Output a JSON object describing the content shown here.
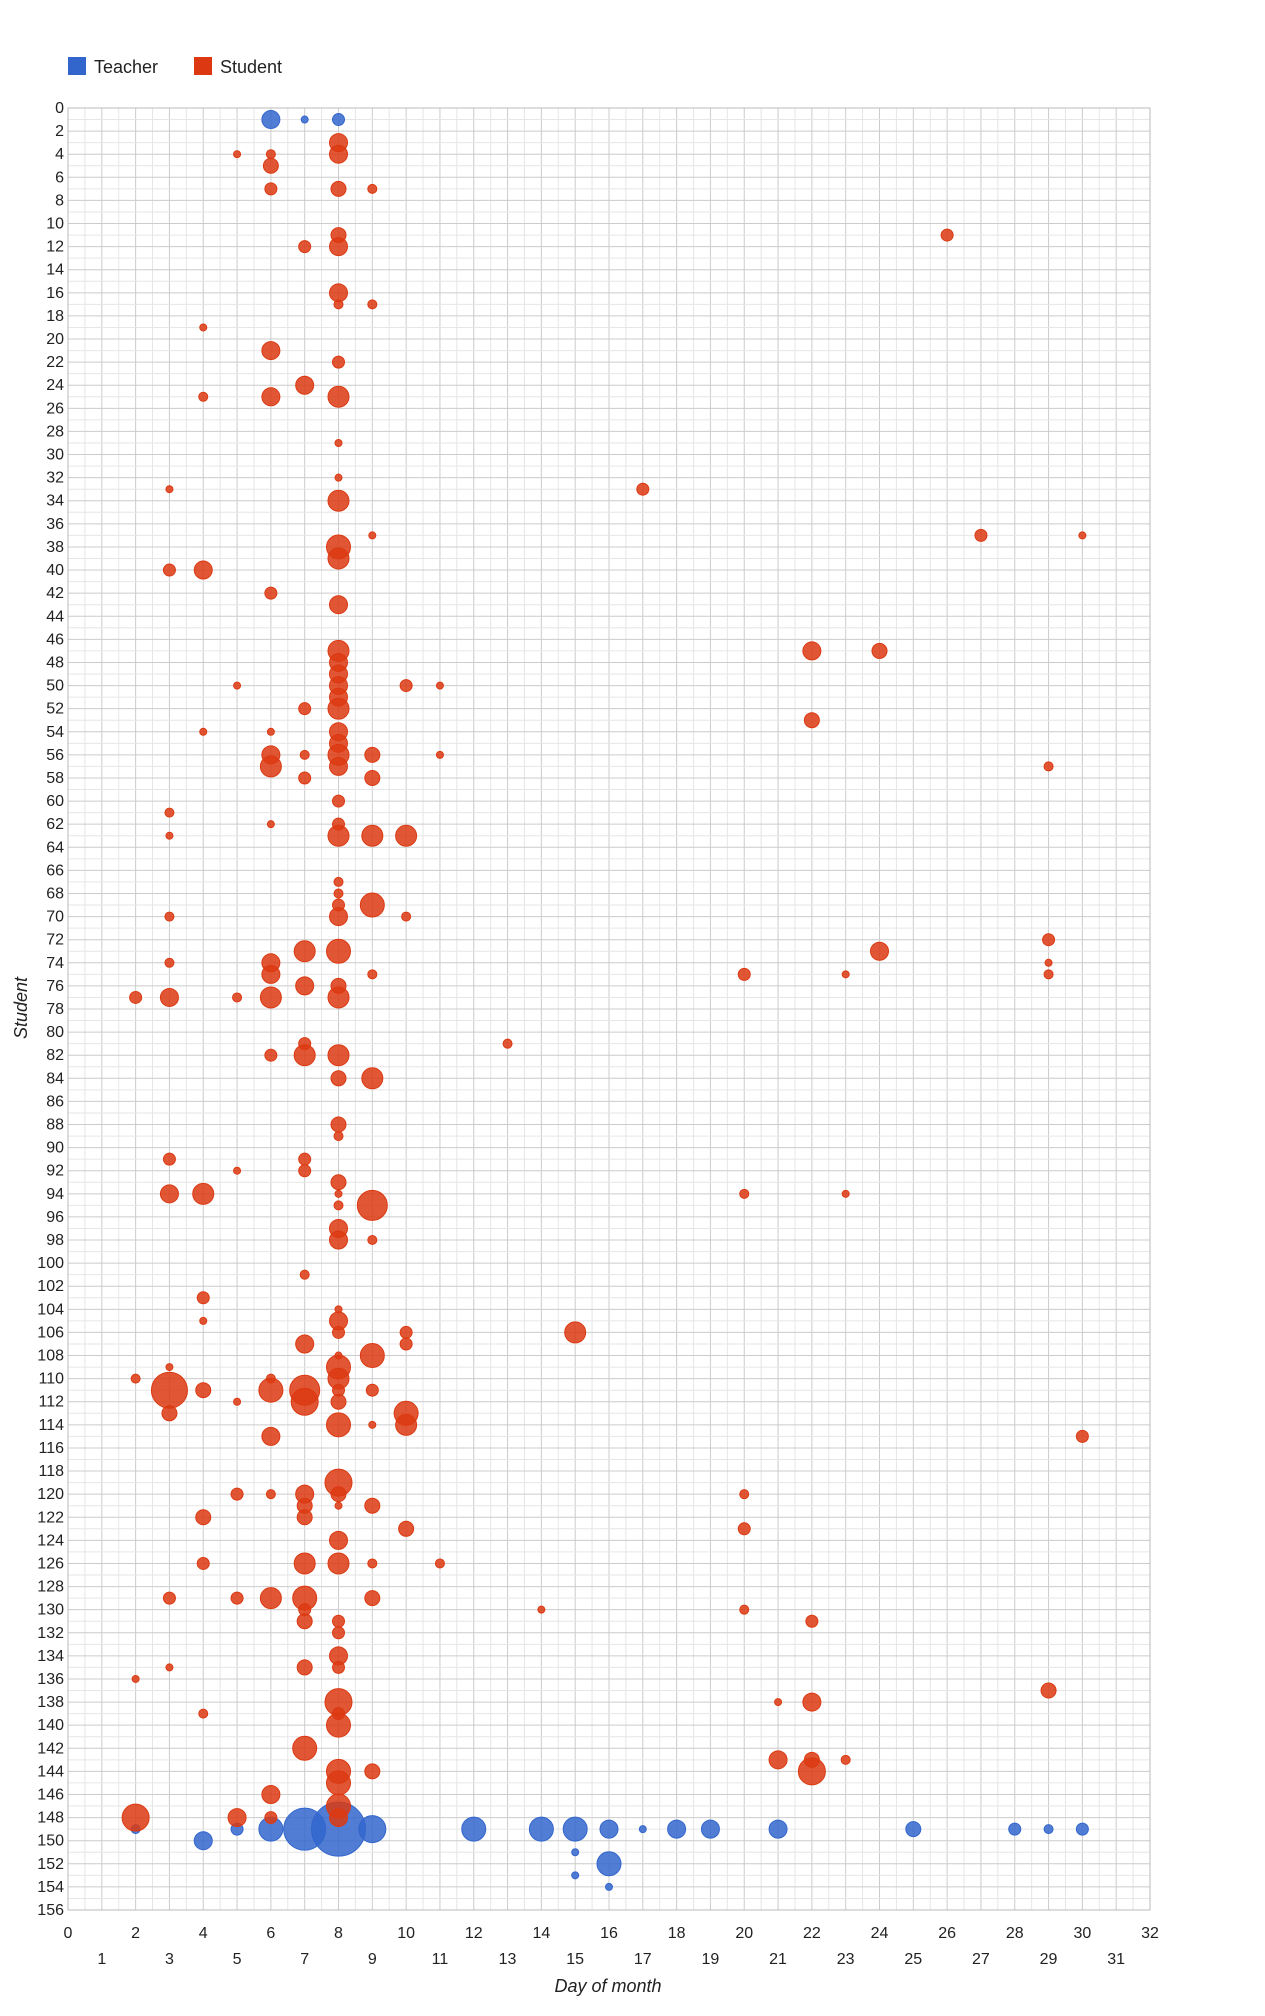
{
  "chart_data": {
    "type": "scatter",
    "xlabel": "Day of month",
    "ylabel": "Student",
    "xlim": [
      0,
      32
    ],
    "ylim": [
      0,
      156
    ],
    "x_ticks": [
      0,
      1,
      2,
      3,
      4,
      5,
      6,
      7,
      8,
      9,
      10,
      11,
      12,
      13,
      14,
      15,
      16,
      17,
      18,
      19,
      20,
      21,
      22,
      23,
      24,
      25,
      26,
      27,
      28,
      29,
      30,
      31,
      32
    ],
    "y_ticks": [
      0,
      2,
      4,
      6,
      8,
      10,
      12,
      14,
      16,
      18,
      20,
      22,
      24,
      26,
      28,
      30,
      32,
      34,
      36,
      38,
      40,
      42,
      44,
      46,
      48,
      50,
      52,
      54,
      56,
      58,
      60,
      62,
      64,
      66,
      68,
      70,
      72,
      74,
      76,
      78,
      80,
      82,
      84,
      86,
      88,
      90,
      92,
      94,
      96,
      98,
      100,
      102,
      104,
      106,
      108,
      110,
      112,
      114,
      116,
      118,
      120,
      122,
      124,
      126,
      128,
      130,
      132,
      134,
      136,
      138,
      140,
      142,
      144,
      146,
      148,
      150,
      152,
      154,
      156
    ],
    "grid": true,
    "legend_position": "top-left",
    "series": [
      {
        "name": "Teacher",
        "color": "#3366cc",
        "points": [
          [
            6,
            1,
            3
          ],
          [
            7,
            1,
            1
          ],
          [
            8,
            1,
            2
          ],
          [
            2,
            149,
            1.5
          ],
          [
            4,
            150,
            3
          ],
          [
            5,
            149,
            2
          ],
          [
            6,
            149,
            4
          ],
          [
            7,
            149,
            7
          ],
          [
            8,
            149,
            9
          ],
          [
            9,
            149,
            4.5
          ],
          [
            12,
            149,
            4
          ],
          [
            14,
            149,
            4
          ],
          [
            15,
            149,
            4
          ],
          [
            15,
            151,
            1
          ],
          [
            15,
            153,
            1
          ],
          [
            16,
            149,
            3
          ],
          [
            16,
            152,
            4
          ],
          [
            16,
            154,
            1
          ],
          [
            17,
            149,
            1
          ],
          [
            18,
            149,
            3
          ],
          [
            19,
            149,
            3
          ],
          [
            21,
            149,
            3
          ],
          [
            25,
            149,
            2.5
          ],
          [
            28,
            149,
            2
          ],
          [
            29,
            149,
            1.5
          ],
          [
            30,
            149,
            2
          ]
        ]
      },
      {
        "name": "Student",
        "color": "#dc3912",
        "points": [
          [
            8,
            3,
            3
          ],
          [
            5,
            4,
            1
          ],
          [
            6,
            4,
            1.5
          ],
          [
            8,
            4,
            3
          ],
          [
            6,
            5,
            2.5
          ],
          [
            6,
            7,
            2
          ],
          [
            8,
            7,
            2.5
          ],
          [
            9,
            7,
            1.5
          ],
          [
            8,
            11,
            2.5
          ],
          [
            26,
            11,
            2
          ],
          [
            7,
            12,
            2
          ],
          [
            8,
            12,
            3
          ],
          [
            8,
            16,
            3
          ],
          [
            8,
            17,
            1.5
          ],
          [
            9,
            17,
            1.5
          ],
          [
            4,
            19,
            1
          ],
          [
            6,
            21,
            3
          ],
          [
            8,
            22,
            2
          ],
          [
            7,
            24,
            3
          ],
          [
            4,
            25,
            1.5
          ],
          [
            6,
            25,
            3
          ],
          [
            8,
            25,
            3.5
          ],
          [
            8,
            29,
            1
          ],
          [
            8,
            32,
            1
          ],
          [
            3,
            33,
            1
          ],
          [
            17,
            33,
            2
          ],
          [
            8,
            34,
            3.5
          ],
          [
            9,
            37,
            1
          ],
          [
            27,
            37,
            2
          ],
          [
            30,
            37,
            1
          ],
          [
            8,
            38,
            4
          ],
          [
            8,
            39,
            3.5
          ],
          [
            3,
            40,
            2
          ],
          [
            4,
            40,
            3
          ],
          [
            6,
            42,
            2
          ],
          [
            8,
            43,
            3
          ],
          [
            8,
            47,
            3.5
          ],
          [
            22,
            47,
            3
          ],
          [
            24,
            47,
            2.5
          ],
          [
            8,
            48,
            3
          ],
          [
            8,
            49,
            3
          ],
          [
            5,
            50,
            1
          ],
          [
            8,
            50,
            3
          ],
          [
            10,
            50,
            2
          ],
          [
            11,
            50,
            1
          ],
          [
            8,
            51,
            3
          ],
          [
            7,
            52,
            2
          ],
          [
            8,
            52,
            3.5
          ],
          [
            22,
            53,
            2.5
          ],
          [
            4,
            54,
            1
          ],
          [
            6,
            54,
            1
          ],
          [
            8,
            54,
            3
          ],
          [
            8,
            55,
            3
          ],
          [
            6,
            56,
            3
          ],
          [
            7,
            56,
            1.5
          ],
          [
            8,
            56,
            3.5
          ],
          [
            9,
            56,
            2.5
          ],
          [
            11,
            56,
            1
          ],
          [
            6,
            57,
            3.5
          ],
          [
            8,
            57,
            3
          ],
          [
            29,
            57,
            1.5
          ],
          [
            7,
            58,
            2
          ],
          [
            9,
            58,
            2.5
          ],
          [
            8,
            60,
            2
          ],
          [
            3,
            61,
            1.5
          ],
          [
            6,
            62,
            1
          ],
          [
            8,
            62,
            2
          ],
          [
            3,
            63,
            1
          ],
          [
            8,
            63,
            3.5
          ],
          [
            9,
            63,
            3.5
          ],
          [
            10,
            63,
            3.5
          ],
          [
            8,
            67,
            1.5
          ],
          [
            8,
            68,
            1.5
          ],
          [
            8,
            69,
            2
          ],
          [
            9,
            69,
            4
          ],
          [
            3,
            70,
            1.5
          ],
          [
            8,
            70,
            3
          ],
          [
            10,
            70,
            1.5
          ],
          [
            29,
            72,
            2
          ],
          [
            7,
            73,
            3.5
          ],
          [
            8,
            73,
            4
          ],
          [
            24,
            73,
            3
          ],
          [
            3,
            74,
            1.5
          ],
          [
            6,
            74,
            3
          ],
          [
            29,
            74,
            1
          ],
          [
            6,
            75,
            3
          ],
          [
            9,
            75,
            1.5
          ],
          [
            20,
            75,
            2
          ],
          [
            23,
            75,
            1
          ],
          [
            29,
            75,
            1.5
          ],
          [
            7,
            76,
            3
          ],
          [
            8,
            76,
            2.5
          ],
          [
            2,
            77,
            2
          ],
          [
            3,
            77,
            3
          ],
          [
            5,
            77,
            1.5
          ],
          [
            6,
            77,
            3.5
          ],
          [
            8,
            77,
            3.5
          ],
          [
            7,
            81,
            2
          ],
          [
            13,
            81,
            1.5
          ],
          [
            6,
            82,
            2
          ],
          [
            7,
            82,
            3.5
          ],
          [
            8,
            82,
            3.5
          ],
          [
            8,
            84,
            2.5
          ],
          [
            9,
            84,
            3.5
          ],
          [
            8,
            88,
            2.5
          ],
          [
            8,
            89,
            1.5
          ],
          [
            3,
            91,
            2
          ],
          [
            7,
            91,
            2
          ],
          [
            5,
            92,
            1
          ],
          [
            7,
            92,
            2
          ],
          [
            8,
            93,
            2.5
          ],
          [
            3,
            94,
            3
          ],
          [
            4,
            94,
            3.5
          ],
          [
            8,
            94,
            1
          ],
          [
            20,
            94,
            1.5
          ],
          [
            23,
            94,
            1
          ],
          [
            8,
            95,
            1.5
          ],
          [
            9,
            95,
            5
          ],
          [
            8,
            97,
            3
          ],
          [
            8,
            98,
            3
          ],
          [
            9,
            98,
            1.5
          ],
          [
            7,
            101,
            1.5
          ],
          [
            4,
            103,
            2
          ],
          [
            8,
            104,
            1
          ],
          [
            4,
            105,
            1
          ],
          [
            8,
            105,
            3
          ],
          [
            8,
            106,
            2
          ],
          [
            10,
            106,
            2
          ],
          [
            15,
            106,
            3.5
          ],
          [
            7,
            107,
            3
          ],
          [
            10,
            107,
            2
          ],
          [
            8,
            108,
            1
          ],
          [
            9,
            108,
            4
          ],
          [
            3,
            109,
            1
          ],
          [
            8,
            109,
            4
          ],
          [
            2,
            110,
            1.5
          ],
          [
            6,
            110,
            1.5
          ],
          [
            8,
            110,
            3.5
          ],
          [
            3,
            111,
            6
          ],
          [
            4,
            111,
            2.5
          ],
          [
            6,
            111,
            4
          ],
          [
            7,
            111,
            5
          ],
          [
            8,
            111,
            2
          ],
          [
            9,
            111,
            2
          ],
          [
            5,
            112,
            1
          ],
          [
            7,
            112,
            4.5
          ],
          [
            8,
            112,
            2.5
          ],
          [
            3,
            113,
            2.5
          ],
          [
            10,
            113,
            4
          ],
          [
            8,
            114,
            4
          ],
          [
            9,
            114,
            1
          ],
          [
            10,
            114,
            3.5
          ],
          [
            6,
            115,
            3
          ],
          [
            30,
            115,
            2
          ],
          [
            8,
            119,
            4.5
          ],
          [
            5,
            120,
            2
          ],
          [
            6,
            120,
            1.5
          ],
          [
            7,
            120,
            3
          ],
          [
            8,
            120,
            2.5
          ],
          [
            20,
            120,
            1.5
          ],
          [
            7,
            121,
            2.5
          ],
          [
            8,
            121,
            1
          ],
          [
            9,
            121,
            2.5
          ],
          [
            4,
            122,
            2.5
          ],
          [
            7,
            122,
            2.5
          ],
          [
            10,
            123,
            2.5
          ],
          [
            20,
            123,
            2
          ],
          [
            8,
            124,
            3
          ],
          [
            4,
            126,
            2
          ],
          [
            7,
            126,
            3.5
          ],
          [
            8,
            126,
            3.5
          ],
          [
            9,
            126,
            1.5
          ],
          [
            11,
            126,
            1.5
          ],
          [
            3,
            129,
            2
          ],
          [
            5,
            129,
            2
          ],
          [
            6,
            129,
            3.5
          ],
          [
            7,
            129,
            4
          ],
          [
            9,
            129,
            2.5
          ],
          [
            7,
            130,
            2
          ],
          [
            14,
            130,
            1
          ],
          [
            20,
            130,
            1.5
          ],
          [
            7,
            131,
            2.5
          ],
          [
            8,
            131,
            2
          ],
          [
            22,
            131,
            2
          ],
          [
            8,
            132,
            2
          ],
          [
            8,
            134,
            3
          ],
          [
            3,
            135,
            1
          ],
          [
            7,
            135,
            2.5
          ],
          [
            8,
            135,
            2
          ],
          [
            2,
            136,
            1
          ],
          [
            29,
            137,
            2.5
          ],
          [
            21,
            138,
            1
          ],
          [
            8,
            138,
            4.5
          ],
          [
            22,
            138,
            3
          ],
          [
            4,
            139,
            1.5
          ],
          [
            8,
            139,
            2
          ],
          [
            8,
            140,
            4
          ],
          [
            7,
            142,
            4
          ],
          [
            21,
            143,
            3
          ],
          [
            22,
            143,
            2.5
          ],
          [
            23,
            143,
            1.5
          ],
          [
            8,
            144,
            4
          ],
          [
            9,
            144,
            2.5
          ],
          [
            22,
            144,
            4.5
          ],
          [
            8,
            145,
            4
          ],
          [
            6,
            146,
            3
          ],
          [
            8,
            147,
            4
          ],
          [
            2,
            148,
            4.5
          ],
          [
            5,
            148,
            3
          ],
          [
            6,
            148,
            2
          ],
          [
            8,
            148,
            3
          ]
        ]
      }
    ]
  }
}
